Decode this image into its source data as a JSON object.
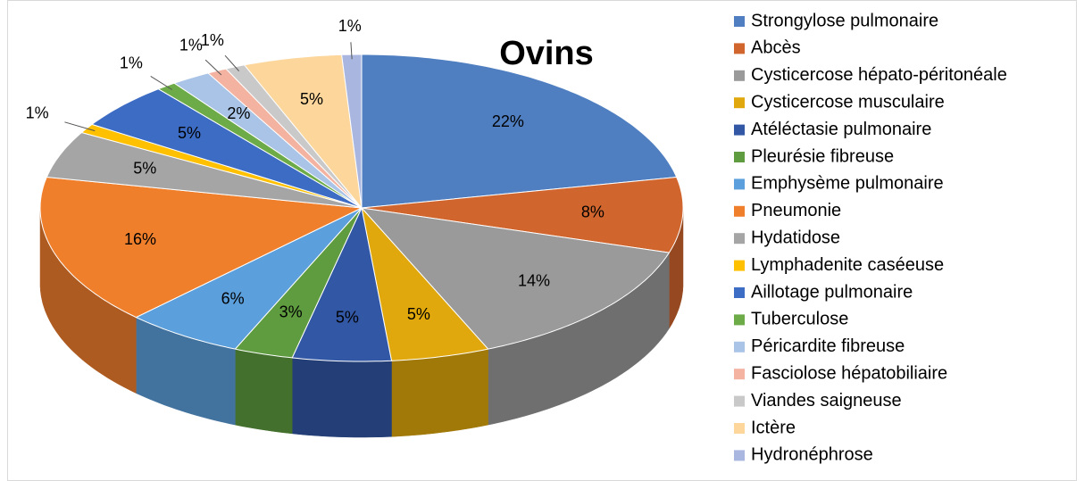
{
  "chart_data": {
    "type": "pie",
    "title": "Ovins",
    "categories": [
      "Strongylose pulmonaire",
      "Abcès",
      "Cysticercose hépato-péritonéale",
      "Cysticercose musculaire",
      "Atéléctasie pulmonaire",
      "Pleurésie fibreuse",
      "Emphysème pulmonaire",
      "Pneumonie",
      "Hydatidose",
      "Lymphadenite caséeuse",
      "Aillotage pulmonaire",
      "Tuberculose",
      "Péricardite fibreuse",
      "Fasciolose hépatobiliaire",
      "Viandes saigneuse",
      "Ictère",
      "Hydronéphrose"
    ],
    "values": [
      22,
      8,
      14,
      5,
      5,
      3,
      6,
      16,
      5,
      1,
      5,
      1,
      2,
      1,
      1,
      5,
      1
    ],
    "value_labels": [
      "22%",
      "8%",
      "14%",
      "5%",
      "5%",
      "3%",
      "6%",
      "16%",
      "5%",
      "1%",
      "5%",
      "1%",
      "2%",
      "1%",
      "1%",
      "5%",
      "1%"
    ],
    "colors": [
      "#4f7fc0",
      "#d0652d",
      "#9a9a9a",
      "#e0a80c",
      "#3257a5",
      "#5e9c3f",
      "#5b9fdc",
      "#f07f2c",
      "#a5a5a5",
      "#ffc000",
      "#3d6cc4",
      "#6cab47",
      "#a9c4e7",
      "#f4b2a0",
      "#c9c9c9",
      "#fcd69a",
      "#a9b6e0"
    ],
    "legend": "right"
  }
}
